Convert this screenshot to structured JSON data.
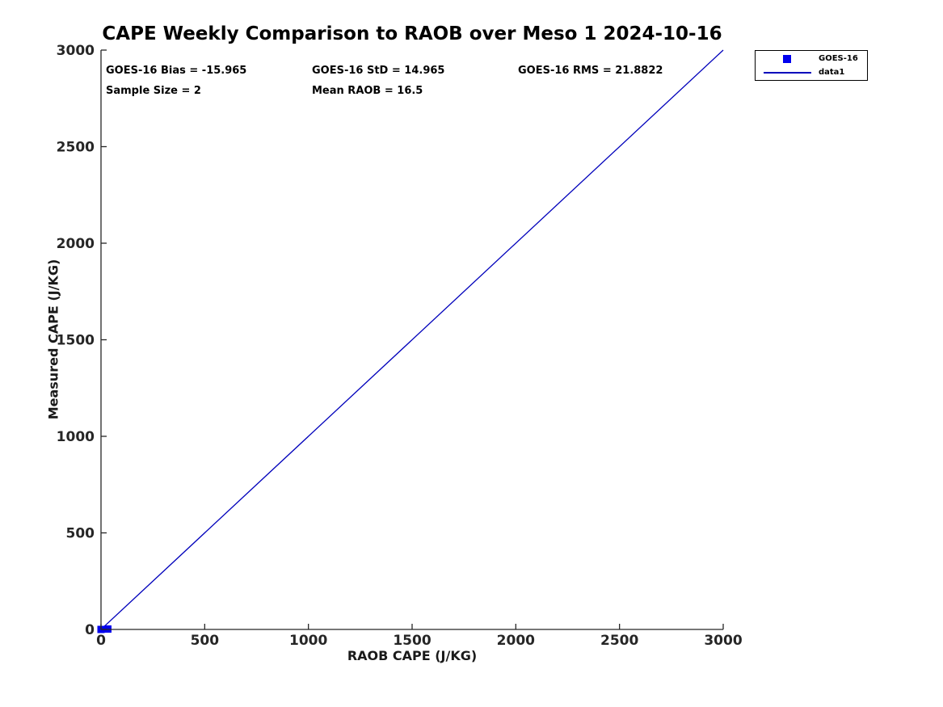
{
  "title": "CAPE Weekly Comparison to RAOB over Meso 1 2024-10-16",
  "legend": {
    "entries": [
      {
        "label": "GOES-16",
        "marker": "square",
        "color": "#0000ee"
      },
      {
        "label": "data1",
        "marker": "line",
        "color": "#0000bb"
      }
    ]
  },
  "chart_data": {
    "type": "scatter",
    "title": "CAPE Weekly Comparison to RAOB over Meso 1 2024-10-16",
    "xlabel": "RAOB CAPE (J/KG)",
    "ylabel": "Measured CAPE (J/KG)",
    "xlim": [
      0,
      3000
    ],
    "ylim": [
      0,
      3000
    ],
    "xticks": [
      0,
      500,
      1000,
      1500,
      2000,
      2500,
      3000
    ],
    "yticks": [
      0,
      500,
      1000,
      1500,
      2000,
      2500,
      3000
    ],
    "grid": false,
    "box": false,
    "legend_position": "outside-top-right",
    "axis_color": "#262626",
    "annotations": [
      {
        "text": "GOES-16 Bias = -15.965"
      },
      {
        "text": "GOES-16 StD = 14.965"
      },
      {
        "text": "GOES-16 RMS = 21.8822"
      },
      {
        "text": "Sample Size = 2"
      },
      {
        "text": "Mean RAOB = 16.5"
      }
    ],
    "series": [
      {
        "name": "data1",
        "type": "line",
        "color": "#0000bb",
        "points": [
          [
            0,
            0
          ],
          [
            3000,
            3000
          ]
        ]
      },
      {
        "name": "GOES-16",
        "type": "scatter",
        "marker": "square",
        "marker_size": 9,
        "color": "#0000ee",
        "points": [
          [
            0,
            0
          ],
          [
            33,
            2
          ]
        ]
      }
    ]
  }
}
